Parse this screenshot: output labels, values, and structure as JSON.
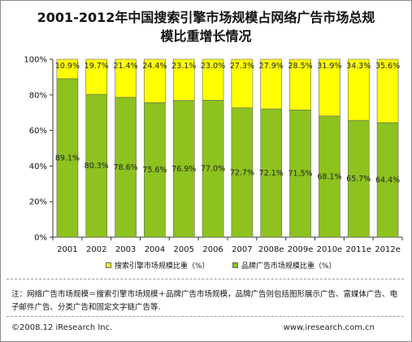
{
  "header": {
    "title_line1": "2001-2012年中国搜索引擎市场规模占网络广告市场总规",
    "title_line2": "模比重增长情况"
  },
  "chart_data": {
    "type": "bar",
    "stacked": true,
    "categories": [
      "2001",
      "2002",
      "2003",
      "2004",
      "2005",
      "2006",
      "2007",
      "2008e",
      "2009e",
      "2010e",
      "2011e",
      "2012e"
    ],
    "series": [
      {
        "name": "品牌广告市场规模比重（%）",
        "color": "#8dc21f",
        "values": [
          89.1,
          80.3,
          78.6,
          75.6,
          76.9,
          77.0,
          72.7,
          72.1,
          71.5,
          68.1,
          65.7,
          64.4
        ],
        "labels": [
          "89.1%",
          "80.3%",
          "78.6%",
          "75.6%",
          "76.9%",
          "77.0%",
          "72.7%",
          "72.1%",
          "71.5%",
          "68.1%",
          "65.7%",
          "64.4%"
        ]
      },
      {
        "name": "搜索引擎市场规模比重（%）",
        "color": "#ffff00",
        "values": [
          10.9,
          19.7,
          21.4,
          24.4,
          23.1,
          23.0,
          27.3,
          27.9,
          28.5,
          31.9,
          34.3,
          35.6
        ],
        "labels": [
          "10.9%",
          "19.7%",
          "21.4%",
          "24.4%",
          "23.1%",
          "23.0%",
          "27.3%",
          "27.9%",
          "28.5%",
          "31.9%",
          "34.3%",
          "35.6%"
        ]
      }
    ],
    "yticks": [
      "0%",
      "20%",
      "40%",
      "60%",
      "80%",
      "100%"
    ],
    "ylim": [
      0,
      100
    ],
    "grid": false,
    "legend_placement": "bottom"
  },
  "note": {
    "text": "注：网络广告市场规模＝搜索引擎市场规模＋品牌广告市场规模，品牌广告则包括图形展示广告、富媒体广告、电子邮件广告、分类广告和固定文字链广告等."
  },
  "footer": {
    "copyright": "©2008.12 iResearch Inc.",
    "website": "www.iresearch.com.cn"
  }
}
